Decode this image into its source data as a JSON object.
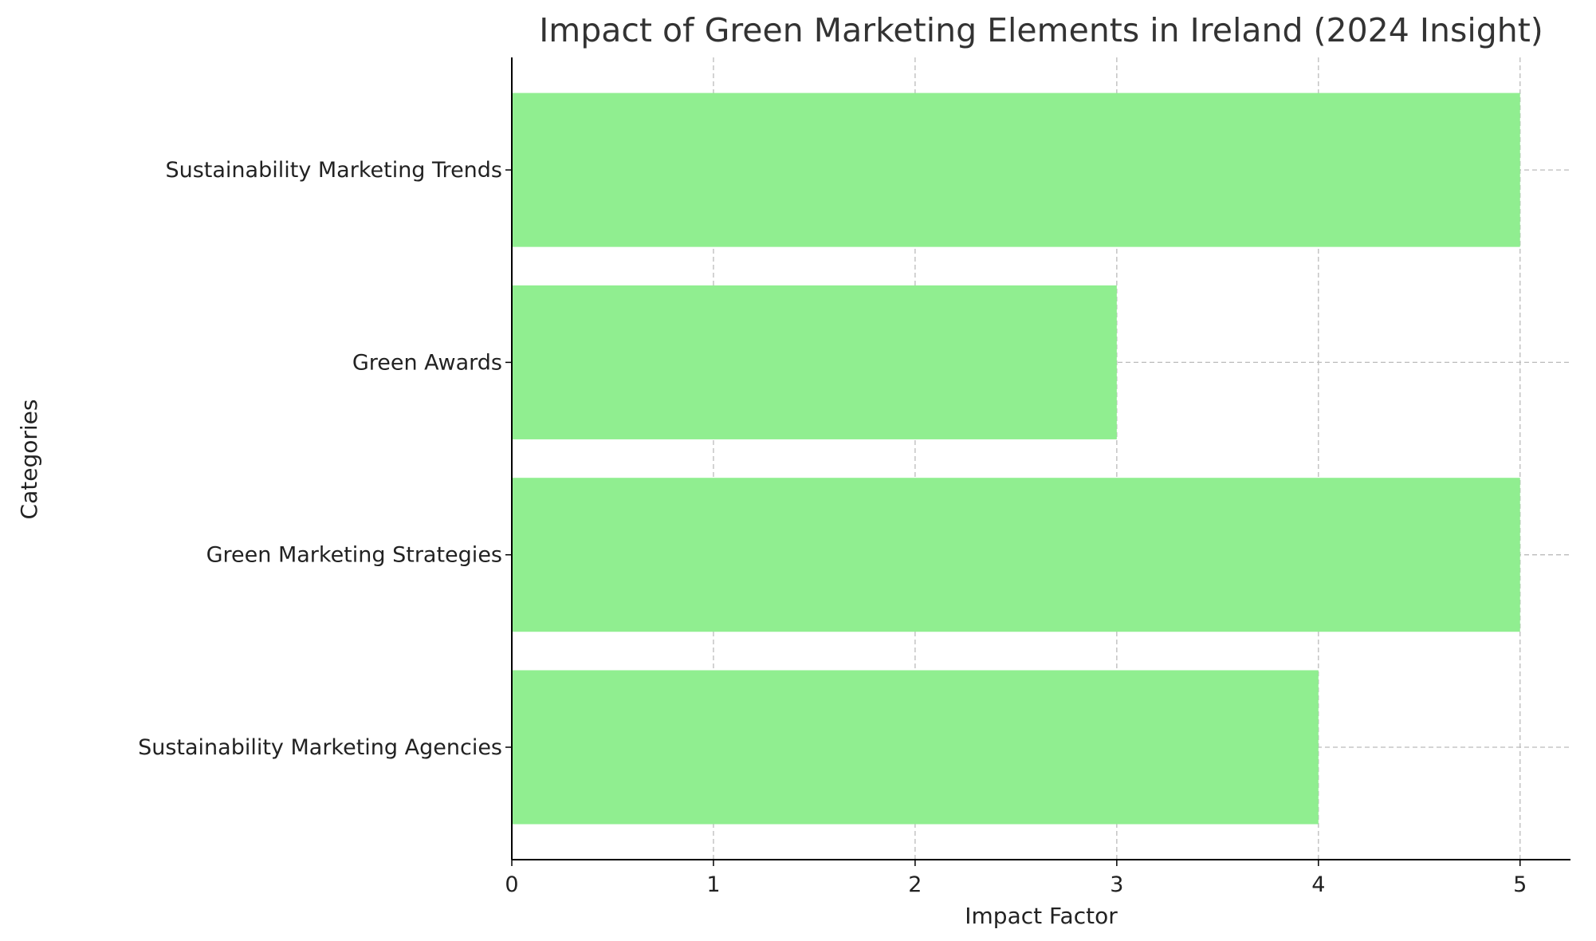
{
  "chart_data": {
    "type": "bar",
    "orientation": "horizontal",
    "title": "Impact of Green Marketing Elements in Ireland (2024 Insight)",
    "xlabel": "Impact Factor",
    "ylabel": "Categories",
    "categories": [
      "Sustainability Marketing Agencies",
      "Green Marketing Strategies",
      "Green Awards",
      "Sustainability Marketing Trends"
    ],
    "values": [
      4,
      5,
      3,
      5
    ],
    "xlim": [
      0,
      5.25
    ],
    "xticks": [
      0,
      1,
      2,
      3,
      4,
      5
    ],
    "grid": true,
    "bar_color": "#90ee90"
  }
}
